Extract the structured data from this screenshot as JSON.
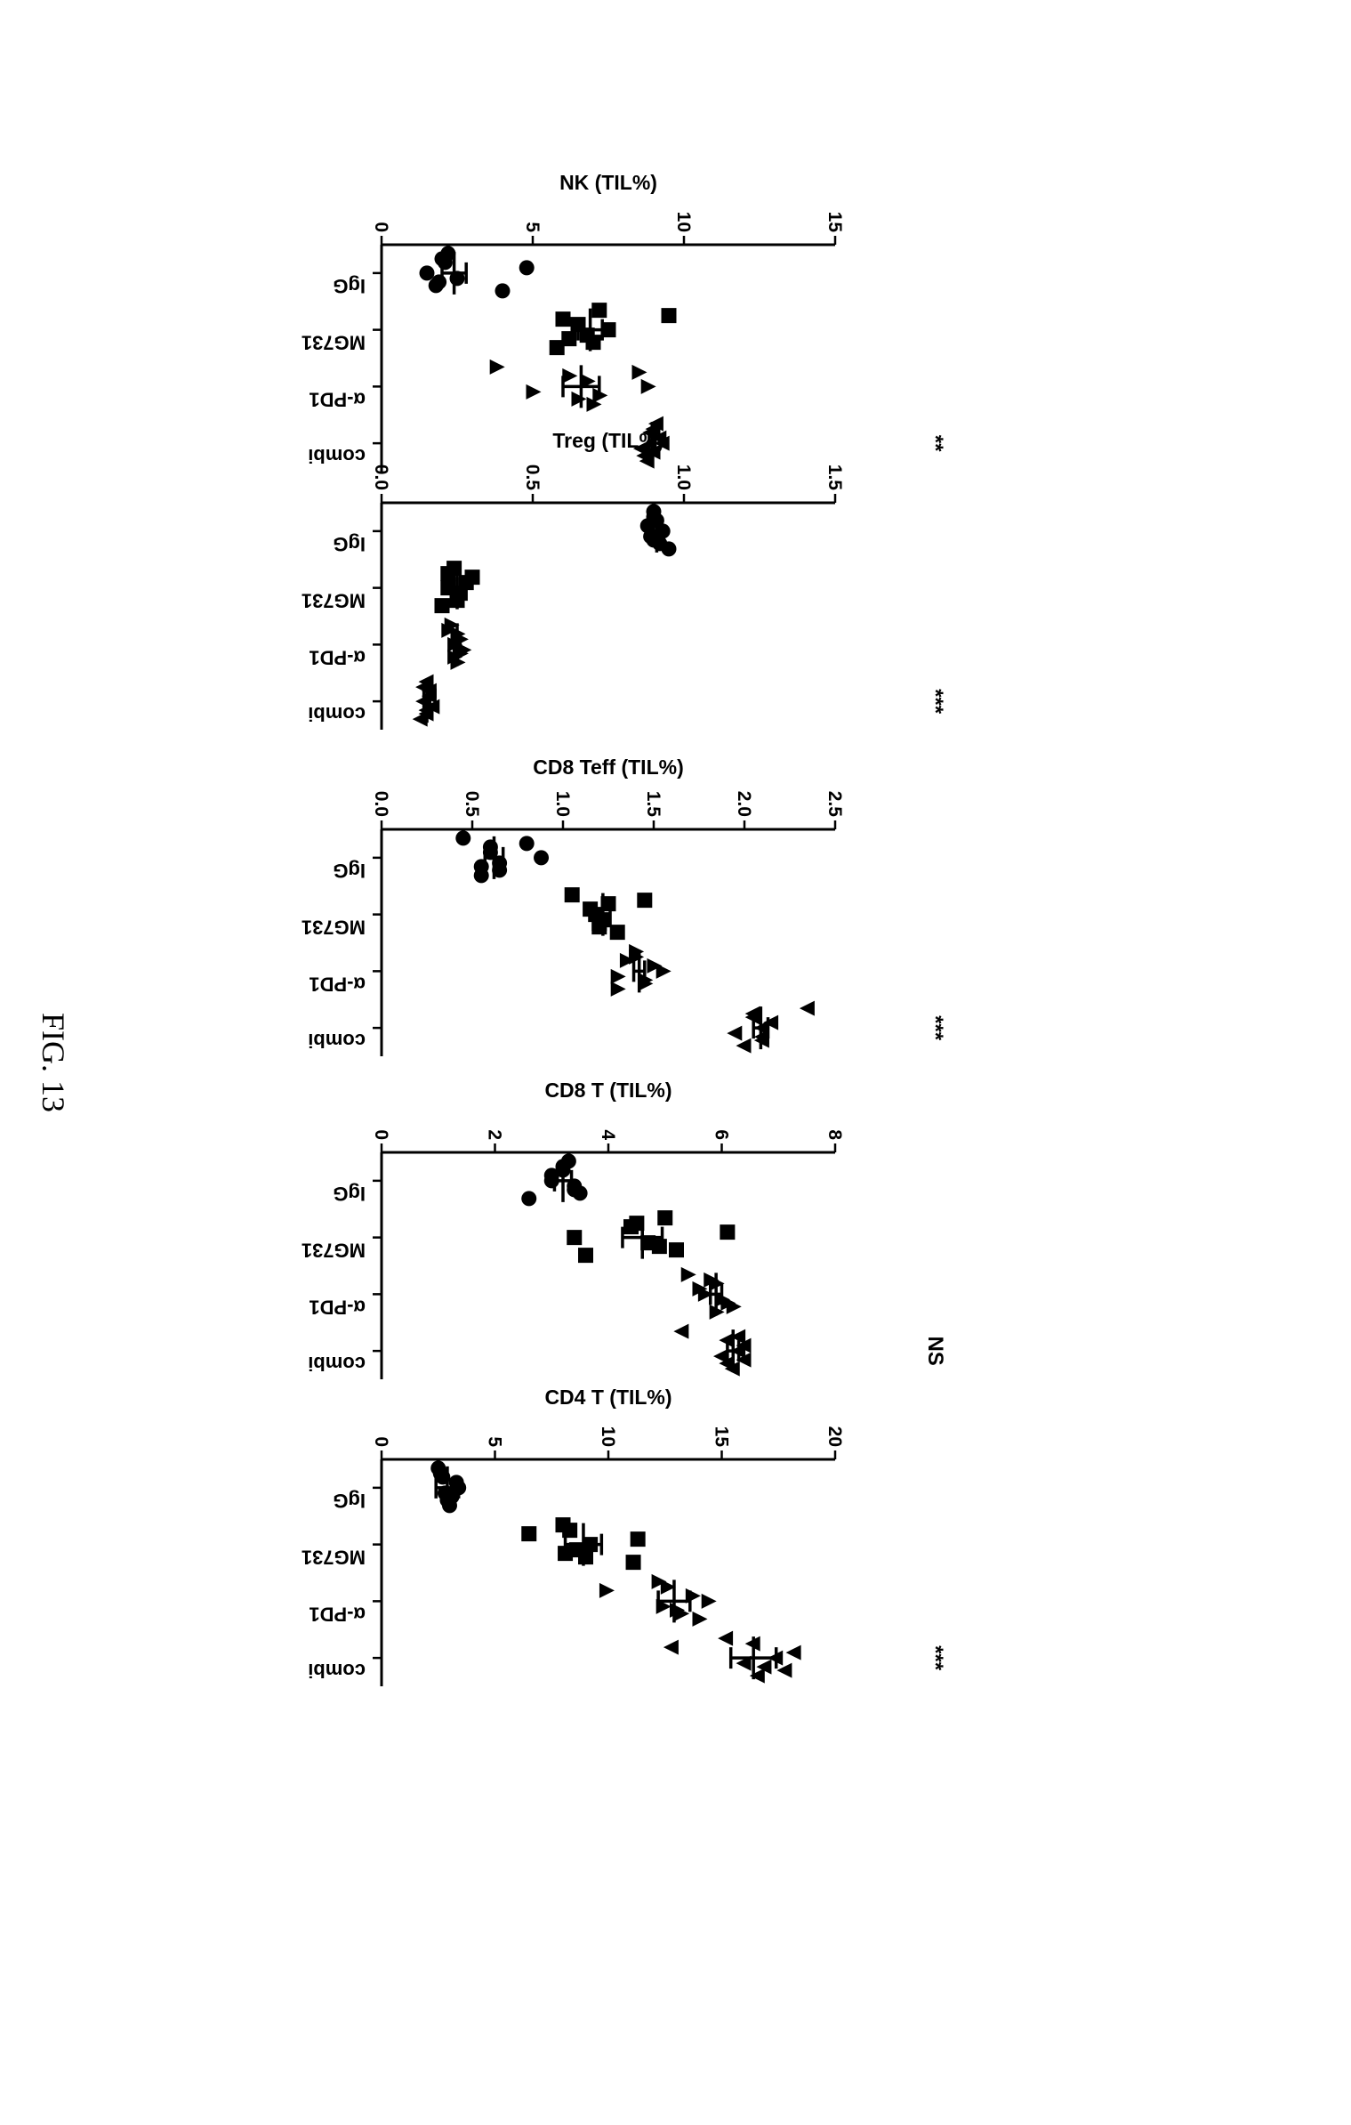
{
  "figure_title": "FIG. 13",
  "chart_data": [
    {
      "type": "scatter",
      "ylabel": "CD4 T (TIL%)",
      "ylim": [
        0,
        20
      ],
      "yticks": [
        0,
        5,
        10,
        15,
        20
      ],
      "yticks_labels": [
        "0",
        "5",
        "10",
        "15",
        "20"
      ],
      "categories": [
        "IgG",
        "MG731",
        "α-PD1",
        "combi"
      ],
      "markers": [
        "circle",
        "square",
        "triangle-up",
        "triangle-down"
      ],
      "significance": "***",
      "groups": [
        {
          "name": "IgG",
          "values": [
            2.6,
            2.9,
            3.3,
            3.0,
            2.5,
            2.8,
            3.4,
            2.7,
            3.1
          ],
          "mean": 2.9,
          "sem": 0.5
        },
        {
          "name": "MG731",
          "values": [
            8.3,
            9.0,
            11.3,
            11.1,
            8.0,
            8.6,
            9.2,
            6.5,
            8.1
          ],
          "mean": 8.9,
          "sem": 0.8
        },
        {
          "name": "α-PD1",
          "values": [
            12.6,
            13.2,
            13.7,
            14.0,
            12.2,
            12.4,
            14.4,
            9.9,
            13.0
          ],
          "mean": 12.9,
          "sem": 0.7
        },
        {
          "name": "combi",
          "values": [
            16.4,
            17.8,
            18.2,
            16.6,
            15.2,
            16.0,
            17.4,
            12.8,
            16.9
          ],
          "mean": 16.4,
          "sem": 1.0
        }
      ]
    },
    {
      "type": "scatter",
      "ylabel": "CD8 T (TIL%)",
      "ylim": [
        0,
        8
      ],
      "yticks": [
        0,
        2,
        4,
        6,
        8
      ],
      "yticks_labels": [
        "0",
        "2",
        "4",
        "6",
        "8"
      ],
      "categories": [
        "IgG",
        "MG731",
        "α-PD1",
        "combi"
      ],
      "markers": [
        "circle",
        "square",
        "triangle-up",
        "triangle-down"
      ],
      "significance": "NS",
      "groups": [
        {
          "name": "IgG",
          "values": [
            3.2,
            3.5,
            3.0,
            2.6,
            3.3,
            3.4,
            3.0,
            3.2,
            3.4
          ],
          "mean": 3.2,
          "sem": 0.15
        },
        {
          "name": "MG731",
          "values": [
            4.5,
            5.2,
            6.1,
            3.6,
            5.0,
            4.7,
            3.4,
            4.4,
            4.9
          ],
          "mean": 4.6,
          "sem": 0.35
        },
        {
          "name": "α-PD1",
          "values": [
            5.8,
            6.2,
            5.6,
            5.9,
            5.4,
            6.0,
            5.7,
            5.9,
            6.1
          ],
          "mean": 5.9,
          "sem": 0.1
        },
        {
          "name": "combi",
          "values": [
            6.3,
            6.1,
            6.4,
            6.2,
            5.3,
            6.0,
            6.3,
            6.1,
            6.4
          ],
          "mean": 6.2,
          "sem": 0.1
        }
      ]
    },
    {
      "type": "scatter",
      "ylabel": "CD8 Teff (TIL%)",
      "ylim": [
        0,
        2.5
      ],
      "yticks": [
        0,
        0.5,
        1.0,
        1.5,
        2.0,
        2.5
      ],
      "yticks_labels": [
        "0.0",
        "0.5",
        "1.0",
        "1.5",
        "2.0",
        "2.5"
      ],
      "categories": [
        "IgG",
        "MG731",
        "α-PD1",
        "combi"
      ],
      "markers": [
        "circle",
        "square",
        "triangle-up",
        "triangle-down"
      ],
      "significance": "***",
      "groups": [
        {
          "name": "IgG",
          "values": [
            0.8,
            0.65,
            0.6,
            0.55,
            0.45,
            0.65,
            0.88,
            0.6,
            0.55
          ],
          "mean": 0.62,
          "sem": 0.05
        },
        {
          "name": "MG731",
          "values": [
            1.45,
            1.2,
            1.15,
            1.3,
            1.05,
            1.22,
            1.18,
            1.25,
            1.2
          ],
          "mean": 1.22,
          "sem": 0.04
        },
        {
          "name": "α-PD1",
          "values": [
            1.4,
            1.45,
            1.5,
            1.3,
            1.4,
            1.3,
            1.55,
            1.35,
            1.45
          ],
          "mean": 1.42,
          "sem": 0.03
        },
        {
          "name": "combi",
          "values": [
            2.05,
            2.1,
            2.15,
            2.0,
            2.35,
            1.95,
            2.1,
            2.05,
            2.1
          ],
          "mean": 2.09,
          "sem": 0.04
        }
      ]
    },
    {
      "type": "scatter",
      "ylabel": "Treg (TIL%)",
      "ylim": [
        0,
        1.5
      ],
      "yticks": [
        0,
        0.5,
        1.0,
        1.5
      ],
      "yticks_labels": [
        "0.0",
        "0.5",
        "1.0",
        "1.5"
      ],
      "categories": [
        "IgG",
        "MG731",
        "α-PD1",
        "combi"
      ],
      "markers": [
        "circle",
        "square",
        "triangle-up",
        "triangle-down"
      ],
      "significance": "***",
      "groups": [
        {
          "name": "IgG",
          "values": [
            0.9,
            0.92,
            0.88,
            0.95,
            0.9,
            0.89,
            0.93,
            0.91,
            0.9
          ],
          "mean": 0.91,
          "sem": 0.01
        },
        {
          "name": "MG731",
          "values": [
            0.22,
            0.25,
            0.28,
            0.2,
            0.24,
            0.26,
            0.22,
            0.3,
            0.25
          ],
          "mean": 0.25,
          "sem": 0.01
        },
        {
          "name": "α-PD1",
          "values": [
            0.22,
            0.24,
            0.26,
            0.25,
            0.23,
            0.27,
            0.24,
            0.25,
            0.26
          ],
          "mean": 0.25,
          "sem": 0.01
        },
        {
          "name": "combi",
          "values": [
            0.14,
            0.15,
            0.16,
            0.13,
            0.15,
            0.17,
            0.14,
            0.16,
            0.15
          ],
          "mean": 0.15,
          "sem": 0.01
        }
      ]
    },
    {
      "type": "scatter",
      "ylabel": "NK (TIL%)",
      "ylim": [
        0,
        15
      ],
      "yticks": [
        0,
        5,
        10,
        15
      ],
      "yticks_labels": [
        "0",
        "5",
        "10",
        "15"
      ],
      "categories": [
        "IgG",
        "MG731",
        "α-PD1",
        "combi"
      ],
      "markers": [
        "circle",
        "square",
        "triangle-up",
        "triangle-down"
      ],
      "significance": "**",
      "groups": [
        {
          "name": "IgG",
          "values": [
            2.0,
            1.8,
            4.8,
            4.0,
            2.2,
            2.5,
            1.5,
            2.1,
            1.9
          ],
          "mean": 2.4,
          "sem": 0.4
        },
        {
          "name": "MG731",
          "values": [
            9.5,
            7.0,
            6.5,
            5.8,
            7.2,
            6.8,
            7.5,
            6.0,
            6.2
          ],
          "mean": 6.9,
          "sem": 0.4
        },
        {
          "name": "α-PD1",
          "values": [
            8.5,
            6.5,
            6.8,
            7.0,
            3.8,
            5.0,
            8.8,
            6.2,
            7.2
          ],
          "mean": 6.6,
          "sem": 0.6
        },
        {
          "name": "combi",
          "values": [
            9.0,
            8.7,
            9.2,
            8.8,
            9.1,
            8.6,
            9.3,
            8.9,
            9.0
          ],
          "mean": 8.95,
          "sem": 0.1
        }
      ]
    }
  ]
}
